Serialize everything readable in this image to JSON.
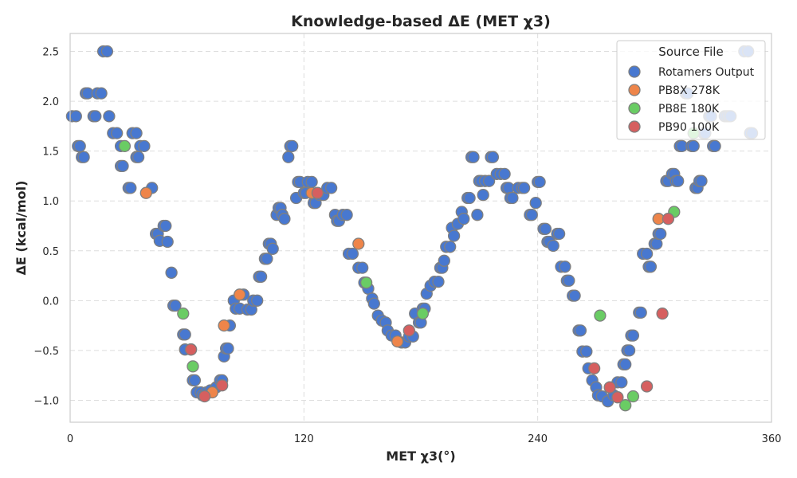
{
  "chart_data": {
    "type": "scatter",
    "title": "Knowledge-based ΔE (MET χ3)",
    "xlabel": "MET χ3(°)",
    "ylabel": "ΔE (kcal/mol)",
    "xlim": [
      0,
      360
    ],
    "ylim": [
      -1.22,
      2.68
    ],
    "xticks": [
      0,
      120,
      240,
      360
    ],
    "yticks": [
      -1.0,
      -0.5,
      0.0,
      0.5,
      1.0,
      1.5,
      2.0,
      2.5
    ],
    "grid": true,
    "legend": {
      "title": "Source File",
      "placement": "top-right"
    },
    "series": [
      {
        "name": "Rotamers Output",
        "color": "#4878d0",
        "points": [
          [
            1,
            1.85
          ],
          [
            3,
            1.85
          ],
          [
            4,
            1.55
          ],
          [
            5,
            1.55
          ],
          [
            6,
            1.44
          ],
          [
            7,
            1.44
          ],
          [
            8,
            2.08
          ],
          [
            9,
            2.08
          ],
          [
            12,
            1.85
          ],
          [
            13,
            1.85
          ],
          [
            14,
            2.08
          ],
          [
            16,
            2.08
          ],
          [
            17,
            2.5
          ],
          [
            19,
            2.5
          ],
          [
            20,
            1.85
          ],
          [
            22,
            1.68
          ],
          [
            24,
            1.68
          ],
          [
            26,
            1.55
          ],
          [
            26,
            1.35
          ],
          [
            27,
            1.35
          ],
          [
            30,
            1.13
          ],
          [
            31,
            1.13
          ],
          [
            32,
            1.68
          ],
          [
            34,
            1.68
          ],
          [
            34,
            1.44
          ],
          [
            35,
            1.44
          ],
          [
            36,
            1.55
          ],
          [
            38,
            1.55
          ],
          [
            42,
            1.13
          ],
          [
            44,
            0.67
          ],
          [
            45,
            0.67
          ],
          [
            46,
            0.6
          ],
          [
            48,
            0.75
          ],
          [
            49,
            0.75
          ],
          [
            50,
            0.59
          ],
          [
            52,
            0.28
          ],
          [
            53,
            -0.05
          ],
          [
            54,
            -0.05
          ],
          [
            58,
            -0.34
          ],
          [
            59,
            -0.34
          ],
          [
            59,
            -0.49
          ],
          [
            62,
            -0.49
          ],
          [
            63,
            -0.8
          ],
          [
            64,
            -0.8
          ],
          [
            65,
            -0.92
          ],
          [
            67,
            -0.92
          ],
          [
            68,
            -0.95
          ],
          [
            70,
            -0.92
          ],
          [
            72,
            -0.9
          ],
          [
            75,
            -0.87
          ],
          [
            77,
            -0.8
          ],
          [
            78,
            -0.8
          ],
          [
            79,
            -0.56
          ],
          [
            80,
            -0.48
          ],
          [
            81,
            -0.48
          ],
          [
            82,
            -0.25
          ],
          [
            84,
            0.0
          ],
          [
            85,
            -0.08
          ],
          [
            87,
            -0.08
          ],
          [
            89,
            0.06
          ],
          [
            91,
            -0.09
          ],
          [
            93,
            -0.09
          ],
          [
            94,
            0.0
          ],
          [
            96,
            0.0
          ],
          [
            97,
            0.24
          ],
          [
            98,
            0.24
          ],
          [
            100,
            0.42
          ],
          [
            101,
            0.42
          ],
          [
            102,
            0.57
          ],
          [
            103,
            0.57
          ],
          [
            104,
            0.52
          ],
          [
            106,
            0.86
          ],
          [
            107,
            0.93
          ],
          [
            108,
            0.93
          ],
          [
            109,
            0.86
          ],
          [
            110,
            0.82
          ],
          [
            112,
            1.44
          ],
          [
            113,
            1.55
          ],
          [
            114,
            1.55
          ],
          [
            116,
            1.03
          ],
          [
            117,
            1.19
          ],
          [
            118,
            1.19
          ],
          [
            120,
            1.08
          ],
          [
            121,
            1.08
          ],
          [
            122,
            1.19
          ],
          [
            124,
            1.19
          ],
          [
            125,
            0.98
          ],
          [
            126,
            0.98
          ],
          [
            128,
            1.06
          ],
          [
            130,
            1.06
          ],
          [
            132,
            1.13
          ],
          [
            134,
            1.13
          ],
          [
            136,
            0.86
          ],
          [
            137,
            0.8
          ],
          [
            138,
            0.8
          ],
          [
            140,
            0.86
          ],
          [
            142,
            0.86
          ],
          [
            143,
            0.47
          ],
          [
            145,
            0.47
          ],
          [
            148,
            0.33
          ],
          [
            150,
            0.33
          ],
          [
            151,
            0.18
          ],
          [
            153,
            0.12
          ],
          [
            155,
            0.02
          ],
          [
            156,
            -0.03
          ],
          [
            158,
            -0.15
          ],
          [
            160,
            -0.2
          ],
          [
            162,
            -0.22
          ],
          [
            163,
            -0.3
          ],
          [
            165,
            -0.35
          ],
          [
            167,
            -0.35
          ],
          [
            170,
            -0.42
          ],
          [
            172,
            -0.42
          ],
          [
            174,
            -0.36
          ],
          [
            176,
            -0.36
          ],
          [
            177,
            -0.13
          ],
          [
            179,
            -0.22
          ],
          [
            180,
            -0.22
          ],
          [
            181,
            -0.08
          ],
          [
            182,
            -0.08
          ],
          [
            183,
            0.07
          ],
          [
            185,
            0.15
          ],
          [
            187,
            0.19
          ],
          [
            189,
            0.19
          ],
          [
            190,
            0.33
          ],
          [
            191,
            0.33
          ],
          [
            192,
            0.4
          ],
          [
            193,
            0.54
          ],
          [
            195,
            0.54
          ],
          [
            196,
            0.73
          ],
          [
            197,
            0.65
          ],
          [
            199,
            0.77
          ],
          [
            201,
            0.89
          ],
          [
            202,
            0.82
          ],
          [
            204,
            1.03
          ],
          [
            205,
            1.03
          ],
          [
            206,
            1.44
          ],
          [
            207,
            1.44
          ],
          [
            209,
            0.86
          ],
          [
            210,
            1.2
          ],
          [
            211,
            1.2
          ],
          [
            212,
            1.06
          ],
          [
            213,
            1.2
          ],
          [
            215,
            1.2
          ],
          [
            216,
            1.44
          ],
          [
            217,
            1.44
          ],
          [
            219,
            1.27
          ],
          [
            221,
            1.27
          ],
          [
            223,
            1.27
          ],
          [
            224,
            1.13
          ],
          [
            225,
            1.13
          ],
          [
            226,
            1.03
          ],
          [
            227,
            1.03
          ],
          [
            230,
            1.13
          ],
          [
            232,
            1.13
          ],
          [
            233,
            1.13
          ],
          [
            236,
            0.86
          ],
          [
            237,
            0.86
          ],
          [
            239,
            0.98
          ],
          [
            240,
            1.19
          ],
          [
            241,
            1.19
          ],
          [
            243,
            0.72
          ],
          [
            244,
            0.72
          ],
          [
            245,
            0.59
          ],
          [
            246,
            0.59
          ],
          [
            248,
            0.55
          ],
          [
            250,
            0.67
          ],
          [
            251,
            0.67
          ],
          [
            252,
            0.34
          ],
          [
            254,
            0.34
          ],
          [
            255,
            0.2
          ],
          [
            256,
            0.2
          ],
          [
            258,
            0.05
          ],
          [
            259,
            0.05
          ],
          [
            261,
            -0.3
          ],
          [
            262,
            -0.3
          ],
          [
            263,
            -0.51
          ],
          [
            265,
            -0.51
          ],
          [
            266,
            -0.68
          ],
          [
            268,
            -0.8
          ],
          [
            270,
            -0.87
          ],
          [
            271,
            -0.95
          ],
          [
            273,
            -0.96
          ],
          [
            276,
            -1.01
          ],
          [
            279,
            -0.95
          ],
          [
            281,
            -0.82
          ],
          [
            283,
            -0.82
          ],
          [
            284,
            -0.64
          ],
          [
            285,
            -0.64
          ],
          [
            286,
            -0.5
          ],
          [
            287,
            -0.5
          ],
          [
            288,
            -0.35
          ],
          [
            289,
            -0.35
          ],
          [
            292,
            -0.12
          ],
          [
            293,
            -0.12
          ],
          [
            294,
            0.47
          ],
          [
            296,
            0.47
          ],
          [
            297,
            0.34
          ],
          [
            298,
            0.34
          ],
          [
            300,
            0.57
          ],
          [
            301,
            0.57
          ],
          [
            302,
            0.67
          ],
          [
            303,
            0.67
          ],
          [
            306,
            1.2
          ],
          [
            307,
            1.2
          ],
          [
            309,
            1.27
          ],
          [
            310,
            1.27
          ],
          [
            311,
            1.2
          ],
          [
            312,
            1.2
          ],
          [
            313,
            1.55
          ],
          [
            314,
            1.55
          ],
          [
            316,
            2.08
          ],
          [
            317,
            2.08
          ],
          [
            319,
            1.55
          ],
          [
            320,
            1.55
          ],
          [
            321,
            1.13
          ],
          [
            322,
            1.13
          ],
          [
            323,
            1.2
          ],
          [
            324,
            1.2
          ],
          [
            325,
            1.68
          ],
          [
            326,
            1.68
          ],
          [
            328,
            1.85
          ],
          [
            329,
            1.85
          ],
          [
            330,
            1.55
          ],
          [
            331,
            1.55
          ],
          [
            336,
            1.85
          ],
          [
            337,
            1.85
          ],
          [
            338,
            1.85
          ],
          [
            339,
            1.85
          ],
          [
            346,
            2.5
          ],
          [
            348,
            2.5
          ],
          [
            349,
            1.68
          ],
          [
            350,
            1.68
          ]
        ]
      },
      {
        "name": "PB8X 278K",
        "color": "#ee854a",
        "points": [
          [
            39,
            1.08
          ],
          [
            79,
            -0.25
          ],
          [
            73,
            -0.92
          ],
          [
            87,
            0.06
          ],
          [
            148,
            0.57
          ],
          [
            168,
            -0.41
          ],
          [
            124,
            1.08
          ],
          [
            302,
            0.82
          ]
        ]
      },
      {
        "name": "PB8E 180K",
        "color": "#6acc64",
        "points": [
          [
            28,
            1.55
          ],
          [
            58,
            -0.13
          ],
          [
            63,
            -0.66
          ],
          [
            152,
            0.18
          ],
          [
            181,
            -0.13
          ],
          [
            272,
            -0.15
          ],
          [
            285,
            -1.05
          ],
          [
            289,
            -0.96
          ],
          [
            320,
            1.68
          ],
          [
            310,
            0.89
          ]
        ]
      },
      {
        "name": "PB90 100K",
        "color": "#d65f5f",
        "points": [
          [
            62,
            -0.49
          ],
          [
            69,
            -0.96
          ],
          [
            78,
            -0.85
          ],
          [
            127,
            1.08
          ],
          [
            174,
            -0.3
          ],
          [
            269,
            -0.68
          ],
          [
            277,
            -0.87
          ],
          [
            281,
            -0.97
          ],
          [
            296,
            -0.86
          ],
          [
            304,
            -0.13
          ],
          [
            307,
            0.82
          ]
        ]
      }
    ]
  }
}
